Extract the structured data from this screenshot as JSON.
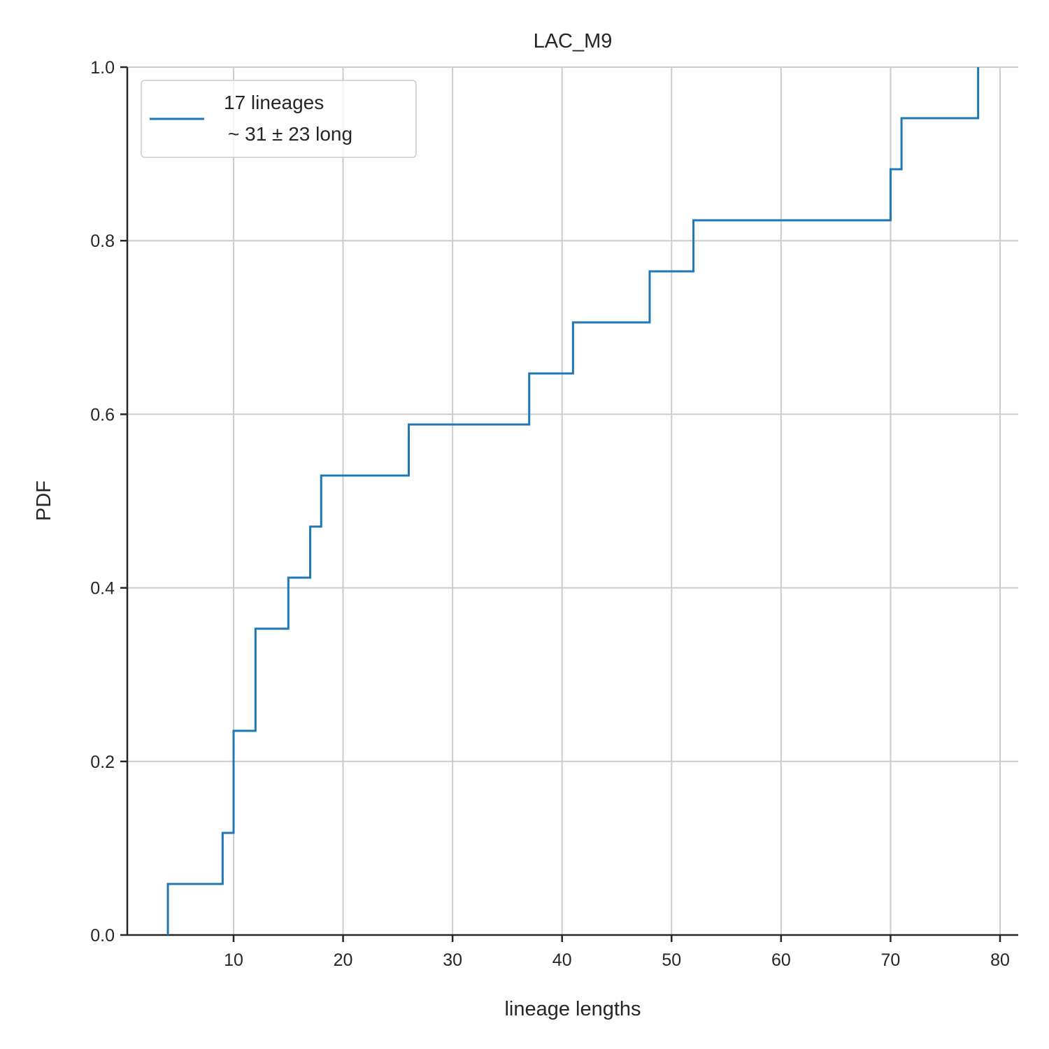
{
  "chart_data": {
    "type": "line",
    "title": "LAC_M9",
    "xlabel": "lineage lengths",
    "ylabel": "PDF",
    "xlim": [
      0,
      82
    ],
    "ylim": [
      0,
      1.0
    ],
    "x_ticks": [
      10,
      20,
      30,
      40,
      50,
      60,
      70,
      80
    ],
    "x_tick_labels": [
      "10",
      "20",
      "30",
      "40",
      "50",
      "60",
      "70",
      "80"
    ],
    "y_ticks": [
      0.0,
      0.2,
      0.4,
      0.6,
      0.8,
      1.0
    ],
    "y_tick_labels": [
      "0.0",
      "0.2",
      "0.4",
      "0.6",
      "0.8",
      "1.0"
    ],
    "grid": true,
    "legend_position": "top-left",
    "series": [
      {
        "name": "17 lineages\n~31 ± 23 long",
        "legend_lines": [
          "17 lineages",
          "~ 31 ± 23 long"
        ],
        "color": "#1f77b4",
        "step": "post",
        "x": [
          4,
          9,
          10,
          12,
          15,
          17,
          18,
          26,
          37,
          41,
          48,
          52,
          70,
          71,
          78
        ],
        "y": [
          0.0588,
          0.1176,
          0.2353,
          0.3529,
          0.4118,
          0.4706,
          0.5294,
          0.5882,
          0.6471,
          0.7059,
          0.7647,
          0.8235,
          0.8824,
          0.9412,
          1.0
        ]
      }
    ]
  }
}
